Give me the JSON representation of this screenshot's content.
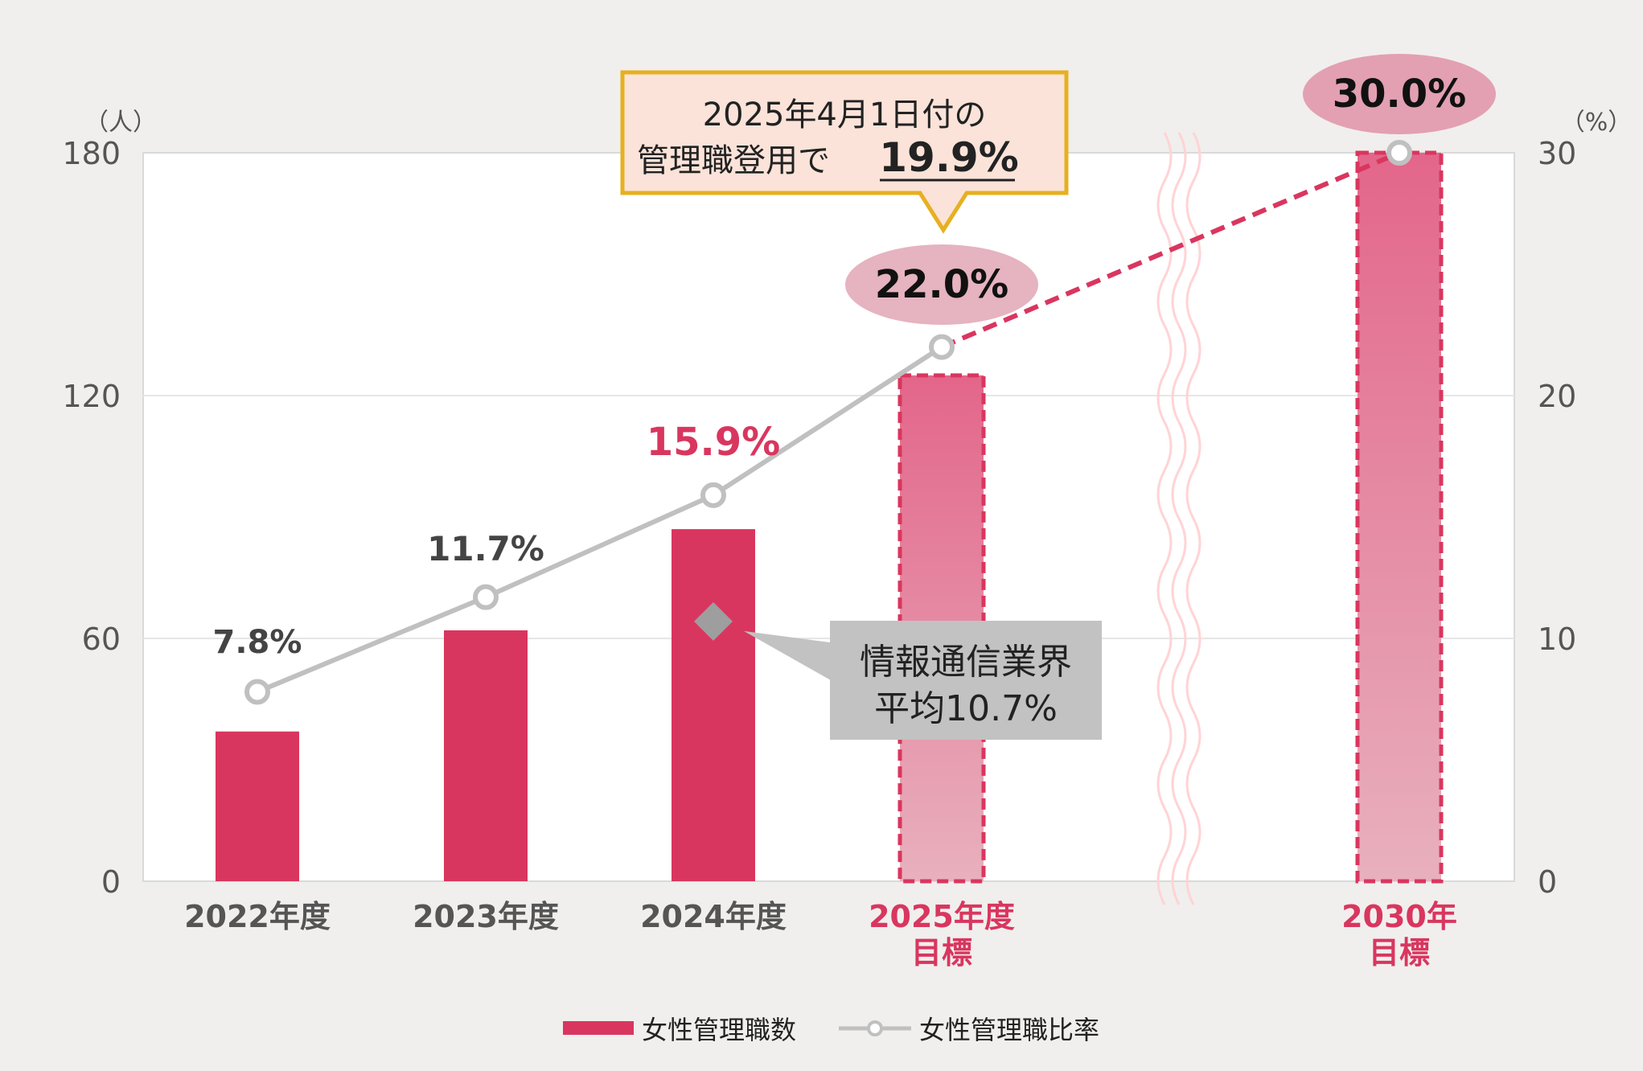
{
  "chart_data": {
    "type": "bar+line",
    "categories": [
      "2022年度",
      "2023年度",
      "2024年度",
      "2025年度",
      "2030年"
    ],
    "category_sublabels": [
      "",
      "",
      "",
      "目標",
      "目標"
    ],
    "y_left": {
      "unit": "（人）",
      "ticks": [
        "0",
        "60",
        "120",
        "180"
      ],
      "ylim": [
        0,
        180
      ]
    },
    "y_right": {
      "unit": "（%）",
      "ticks": [
        "0",
        "10",
        "20",
        "30"
      ],
      "ylim": [
        0,
        30
      ]
    },
    "series": [
      {
        "name": "女性管理職数",
        "kind": "bar",
        "values": [
          37,
          62,
          87,
          125,
          180
        ],
        "is_target": [
          false,
          false,
          false,
          true,
          true
        ],
        "color": "#d9365f",
        "target_color": "#e8a3b4"
      },
      {
        "name": "女性管理職比率",
        "kind": "line",
        "values": [
          7.8,
          11.7,
          15.9,
          22.0,
          30.0
        ],
        "labels": [
          "7.8%",
          "11.7%",
          "15.9%",
          "22.0%",
          "30.0%"
        ],
        "projected_from_index": 3,
        "color": "#c0c0c0",
        "projection_color": "#d9365f"
      }
    ],
    "industry_average": {
      "value": 10.7,
      "label_line1": "情報通信業界",
      "label_line2": "平均10.7%",
      "color": "#9e9e9e"
    },
    "callout": {
      "line1": "2025年4月1日付の",
      "line2_prefix": "管理職登用で",
      "line2_value": "19.9%"
    },
    "legend_placement": "bottom",
    "grid": true,
    "axis_break_between": [
      3,
      4
    ]
  }
}
